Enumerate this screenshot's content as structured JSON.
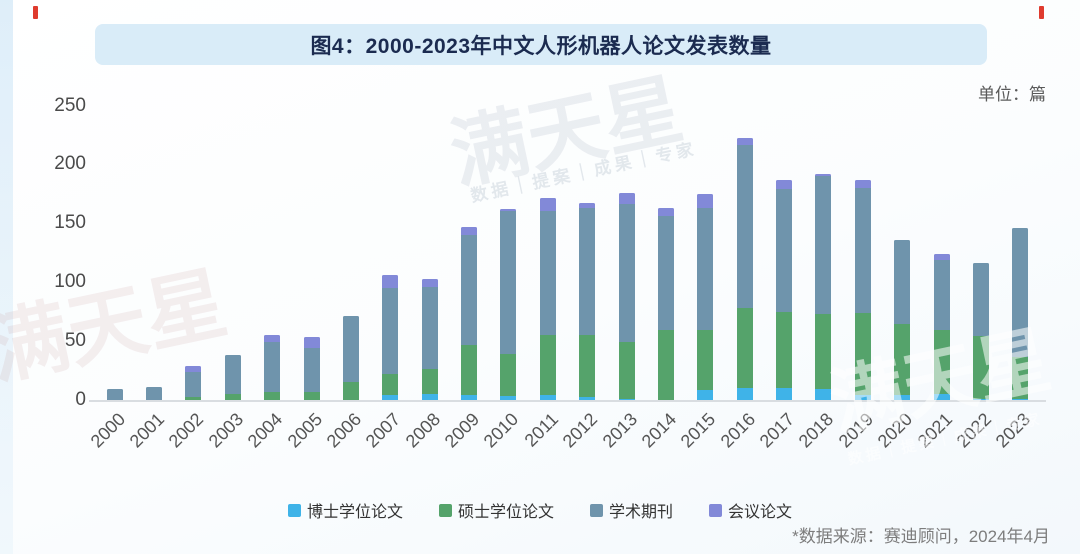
{
  "page": {
    "title": "图4：2000-2023年中文人形机器人论文发表数量",
    "unit_label": "单位：篇",
    "source_note": "*数据来源：赛迪顾问，2024年4月",
    "watermark": {
      "main": "满天星",
      "sub": "数据｜提案｜成果｜专家"
    }
  },
  "chart_data": {
    "type": "bar",
    "stacked": true,
    "title": "图4：2000-2023年中文人形机器人论文发表数量",
    "unit": "篇",
    "xlabel": "",
    "ylabel": "",
    "ylim": [
      0,
      250
    ],
    "yticks": [
      0,
      50,
      100,
      150,
      200,
      250
    ],
    "grid": false,
    "legend_position": "bottom",
    "categories": [
      "2000",
      "2001",
      "2002",
      "2003",
      "2004",
      "2005",
      "2006",
      "2007",
      "2008",
      "2009",
      "2010",
      "2011",
      "2012",
      "2013",
      "2014",
      "2015",
      "2016",
      "2017",
      "2018",
      "2019",
      "2020",
      "2021",
      "2022",
      "2023"
    ],
    "series": [
      {
        "name": "博士学位论文",
        "key": "doctoral-thesis",
        "color": "#3FB3E8",
        "values": [
          0,
          0,
          0,
          0,
          0,
          0,
          0,
          5,
          6,
          5,
          4,
          5,
          3,
          2,
          1,
          9,
          11,
          11,
          10,
          5,
          5,
          6,
          2,
          2
        ]
      },
      {
        "name": "硕士学位论文",
        "key": "masters-thesis",
        "color": "#55A36B",
        "values": [
          0,
          0,
          3,
          6,
          8,
          8,
          16,
          18,
          21,
          43,
          36,
          51,
          53,
          48,
          59,
          51,
          68,
          65,
          64,
          70,
          60,
          54,
          53,
          35
        ]
      },
      {
        "name": "学术期刊",
        "key": "academic-journal",
        "color": "#6F94AC",
        "values": [
          10,
          12,
          22,
          33,
          42,
          37,
          56,
          73,
          70,
          93,
          121,
          105,
          108,
          117,
          97,
          104,
          138,
          104,
          117,
          106,
          72,
          60,
          62,
          110
        ]
      },
      {
        "name": "会议论文",
        "key": "conference-paper",
        "color": "#8289D8",
        "values": [
          0,
          0,
          5,
          0,
          6,
          9,
          0,
          11,
          7,
          7,
          2,
          11,
          4,
          10,
          7,
          12,
          6,
          8,
          2,
          7,
          0,
          5,
          0,
          0
        ]
      }
    ],
    "totals": [
      10,
      12,
      30,
      39,
      56,
      54,
      72,
      107,
      104,
      148,
      163,
      172,
      168,
      177,
      164,
      176,
      223,
      188,
      193,
      188,
      137,
      125,
      117,
      147
    ]
  }
}
